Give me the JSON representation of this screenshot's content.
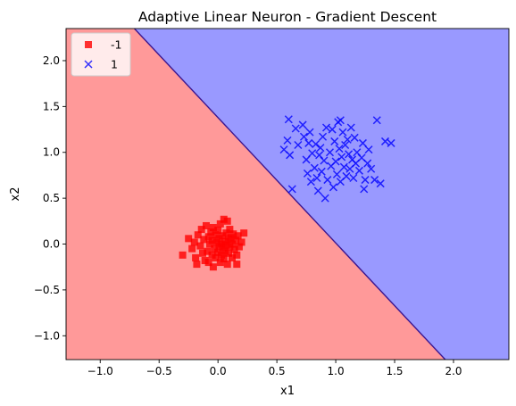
{
  "chart_data": {
    "type": "scatter",
    "title": "Adaptive Linear Neuron - Gradient Descent",
    "xlabel": "x1",
    "ylabel": "x2",
    "xlim": [
      -1.29,
      2.47
    ],
    "ylim": [
      -1.26,
      2.35
    ],
    "xticks": [
      -1.0,
      -0.5,
      0.0,
      0.5,
      1.0,
      1.5,
      2.0
    ],
    "xtick_labels": [
      "−1.0",
      "−0.5",
      "0.0",
      "0.5",
      "1.0",
      "1.5",
      "2.0"
    ],
    "yticks": [
      -1.0,
      -0.5,
      0.0,
      0.5,
      1.0,
      1.5,
      2.0
    ],
    "ytick_labels": [
      "−1.0",
      "−0.5",
      "0.0",
      "0.5",
      "1.0",
      "1.5",
      "2.0"
    ],
    "grid": false,
    "legend_position": "top-left",
    "decision_boundary": {
      "points": [
        [
          -0.71,
          2.35
        ],
        [
          1.93,
          -1.26
        ]
      ],
      "region_colors": {
        "-1": "#ff9999",
        "1": "#9999ff"
      },
      "line_color": "#3b1690"
    },
    "series": [
      {
        "name": "-1",
        "marker": "square",
        "color": "#ff0000",
        "points": [
          [
            -0.3,
            -0.12
          ],
          [
            -0.22,
            -0.05
          ],
          [
            -0.2,
            0.02
          ],
          [
            -0.19,
            -0.15
          ],
          [
            -0.17,
            0.1
          ],
          [
            -0.15,
            -0.02
          ],
          [
            -0.14,
            0.16
          ],
          [
            -0.13,
            -0.1
          ],
          [
            -0.12,
            0.05
          ],
          [
            -0.11,
            -0.18
          ],
          [
            -0.1,
            0.2
          ],
          [
            -0.09,
            -0.08
          ],
          [
            -0.08,
            0.08
          ],
          [
            -0.08,
            -0.2
          ],
          [
            -0.07,
            0.0
          ],
          [
            -0.06,
            0.13
          ],
          [
            -0.05,
            -0.12
          ],
          [
            -0.05,
            0.04
          ],
          [
            -0.04,
            -0.25
          ],
          [
            -0.04,
            0.18
          ],
          [
            -0.03,
            -0.05
          ],
          [
            -0.02,
            0.1
          ],
          [
            -0.02,
            -0.15
          ],
          [
            -0.01,
            0.02
          ],
          [
            0.0,
            -0.09
          ],
          [
            0.0,
            0.15
          ],
          [
            0.01,
            -0.02
          ],
          [
            0.01,
            0.06
          ],
          [
            0.02,
            -0.2
          ],
          [
            0.02,
            0.22
          ],
          [
            0.03,
            0.0
          ],
          [
            0.03,
            -0.12
          ],
          [
            0.04,
            0.09
          ],
          [
            0.04,
            -0.04
          ],
          [
            0.05,
            0.27
          ],
          [
            0.05,
            -0.16
          ],
          [
            0.06,
            0.03
          ],
          [
            0.06,
            -0.08
          ],
          [
            0.07,
            0.12
          ],
          [
            0.07,
            -0.01
          ],
          [
            0.08,
            0.25
          ],
          [
            0.08,
            -0.22
          ],
          [
            0.09,
            0.05
          ],
          [
            0.09,
            -0.1
          ],
          [
            0.1,
            0.16
          ],
          [
            0.1,
            -0.03
          ],
          [
            0.11,
            0.07
          ],
          [
            0.12,
            -0.15
          ],
          [
            0.12,
            0.0
          ],
          [
            0.13,
            0.11
          ],
          [
            0.14,
            -0.06
          ],
          [
            0.15,
            0.04
          ],
          [
            0.16,
            -0.12
          ],
          [
            0.17,
            0.09
          ],
          [
            0.18,
            -0.03
          ],
          [
            0.2,
            0.02
          ],
          [
            0.22,
            0.12
          ],
          [
            -0.25,
            0.06
          ],
          [
            -0.18,
            -0.22
          ],
          [
            0.16,
            -0.22
          ]
        ]
      },
      {
        "name": "1",
        "marker": "x",
        "color": "#0000ff",
        "points": [
          [
            0.56,
            1.03
          ],
          [
            0.59,
            1.13
          ],
          [
            0.6,
            1.36
          ],
          [
            0.61,
            0.97
          ],
          [
            0.63,
            0.6
          ],
          [
            0.66,
            1.26
          ],
          [
            0.68,
            1.08
          ],
          [
            0.72,
            1.3
          ],
          [
            0.73,
            1.17
          ],
          [
            0.75,
            0.92
          ],
          [
            0.76,
            0.77
          ],
          [
            0.78,
            1.22
          ],
          [
            0.79,
            0.68
          ],
          [
            0.8,
            0.99
          ],
          [
            0.82,
            0.83
          ],
          [
            0.83,
            1.09
          ],
          [
            0.84,
            0.72
          ],
          [
            0.85,
            0.58
          ],
          [
            0.87,
            1.05
          ],
          [
            0.88,
            0.79
          ],
          [
            0.89,
            1.17
          ],
          [
            0.9,
            0.91
          ],
          [
            0.91,
            0.5
          ],
          [
            0.92,
            1.27
          ],
          [
            0.93,
            0.7
          ],
          [
            0.95,
            1.0
          ],
          [
            0.96,
            0.85
          ],
          [
            0.97,
            1.25
          ],
          [
            0.98,
            0.62
          ],
          [
            0.99,
            1.12
          ],
          [
            1.0,
            0.9
          ],
          [
            1.01,
            0.76
          ],
          [
            1.02,
            1.33
          ],
          [
            1.03,
            1.04
          ],
          [
            1.04,
            0.68
          ],
          [
            1.05,
            0.95
          ],
          [
            1.06,
            1.22
          ],
          [
            1.07,
            0.84
          ],
          [
            1.08,
            1.08
          ],
          [
            1.09,
            0.74
          ],
          [
            1.1,
            1.14
          ],
          [
            1.11,
            0.98
          ],
          [
            1.12,
            0.82
          ],
          [
            1.13,
            1.27
          ],
          [
            1.14,
            0.92
          ],
          [
            1.15,
            0.72
          ],
          [
            1.16,
            1.16
          ],
          [
            1.17,
            0.88
          ],
          [
            1.18,
            1.0
          ],
          [
            1.2,
            0.8
          ],
          [
            1.22,
            0.94
          ],
          [
            1.23,
            1.1
          ],
          [
            1.24,
            0.6
          ],
          [
            1.25,
            0.7
          ],
          [
            1.27,
            0.88
          ],
          [
            1.28,
            1.03
          ],
          [
            1.3,
            0.82
          ],
          [
            1.33,
            0.7
          ],
          [
            1.35,
            1.35
          ],
          [
            1.38,
            0.66
          ],
          [
            1.42,
            1.12
          ],
          [
            1.47,
            1.1
          ],
          [
            0.77,
            1.1
          ],
          [
            1.04,
            1.35
          ],
          [
            0.86,
            0.97
          ]
        ]
      }
    ]
  }
}
